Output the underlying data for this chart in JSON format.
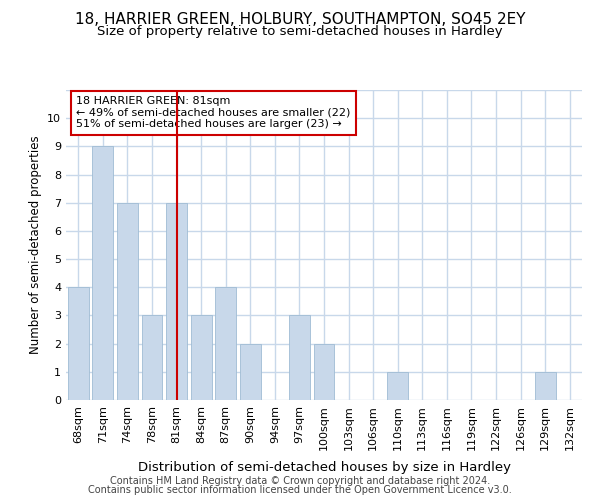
{
  "title": "18, HARRIER GREEN, HOLBURY, SOUTHAMPTON, SO45 2EY",
  "subtitle": "Size of property relative to semi-detached houses in Hardley",
  "xlabel": "Distribution of semi-detached houses by size in Hardley",
  "ylabel": "Number of semi-detached properties",
  "categories": [
    "68sqm",
    "71sqm",
    "74sqm",
    "78sqm",
    "81sqm",
    "84sqm",
    "87sqm",
    "90sqm",
    "94sqm",
    "97sqm",
    "100sqm",
    "103sqm",
    "106sqm",
    "110sqm",
    "113sqm",
    "116sqm",
    "119sqm",
    "122sqm",
    "126sqm",
    "129sqm",
    "132sqm"
  ],
  "values": [
    4,
    9,
    7,
    3,
    7,
    3,
    4,
    2,
    0,
    3,
    2,
    0,
    0,
    1,
    0,
    0,
    0,
    0,
    0,
    1,
    0
  ],
  "highlight_index": 4,
  "bar_color": "#c8d8ea",
  "bar_edgecolor": "#a0bcd4",
  "highlight_line_color": "#cc0000",
  "annotation_line1": "18 HARRIER GREEN: 81sqm",
  "annotation_line2": "← 49% of semi-detached houses are smaller (22)",
  "annotation_line3": "51% of semi-detached houses are larger (23) →",
  "annotation_box_edgecolor": "#cc0000",
  "ylim": [
    0,
    11
  ],
  "yticks": [
    0,
    1,
    2,
    3,
    4,
    5,
    6,
    7,
    8,
    9,
    10,
    11
  ],
  "footer1": "Contains HM Land Registry data © Crown copyright and database right 2024.",
  "footer2": "Contains public sector information licensed under the Open Government Licence v3.0.",
  "background_color": "#ffffff",
  "plot_bg_color": "#ffffff",
  "grid_color": "#c8d8ea",
  "title_fontsize": 11,
  "subtitle_fontsize": 9.5,
  "xlabel_fontsize": 9.5,
  "ylabel_fontsize": 8.5,
  "tick_fontsize": 8,
  "annotation_fontsize": 8,
  "footer_fontsize": 7
}
